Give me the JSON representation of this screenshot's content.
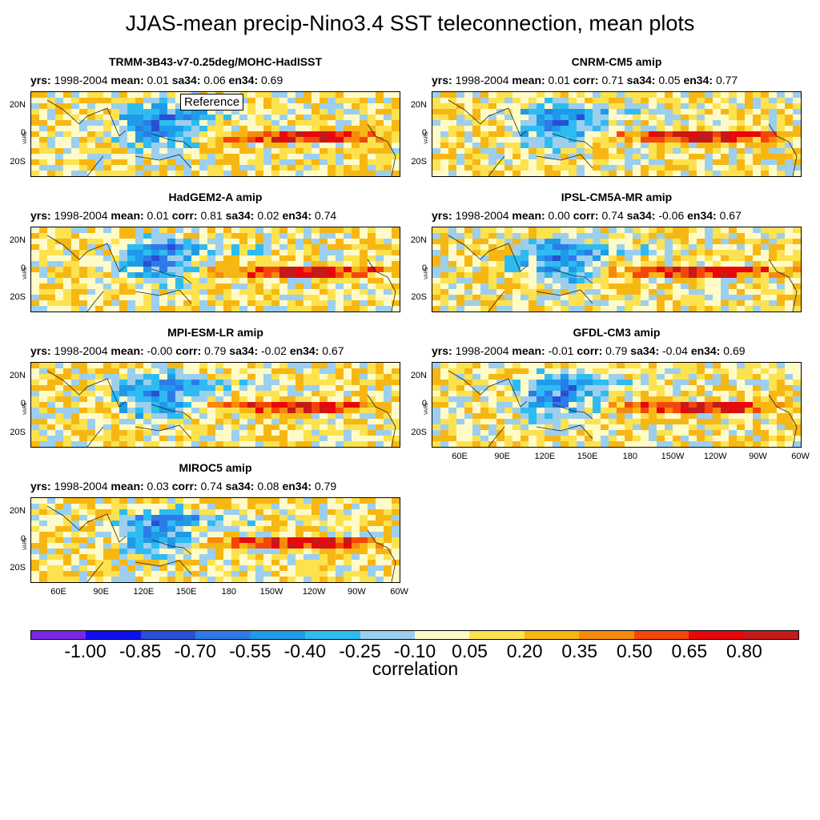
{
  "figure": {
    "title": "JJAS-mean precip-Nino3.4 SST teleconnection, mean plots",
    "reference_label": "Reference",
    "units_label": "VAR5",
    "lat_labels": [
      "20N",
      "0",
      "20S"
    ],
    "lon_labels": [
      "60E",
      "90E",
      "120E",
      "150E",
      "180",
      "150W",
      "120W",
      "90W",
      "60W"
    ]
  },
  "stat_keys": {
    "yrs": "yrs:",
    "mean": "mean:",
    "corr": "corr:",
    "sa34": "sa34:",
    "en34": "en34:"
  },
  "panels": [
    {
      "title": "TRMM-3B43-v7-0.25deg/MOHC-HadISST",
      "yrs": "1998-2004",
      "mean": "0.01",
      "corr": "",
      "sa34": "0.06",
      "en34": "0.69",
      "reference": true
    },
    {
      "title": "CNRM-CM5 amip",
      "yrs": "1998-2004",
      "mean": "0.01",
      "corr": "0.71",
      "sa34": "0.05",
      "en34": "0.77"
    },
    {
      "title": "HadGEM2-A amip",
      "yrs": "1998-2004",
      "mean": "0.01",
      "corr": "0.81",
      "sa34": "0.02",
      "en34": "0.74"
    },
    {
      "title": "IPSL-CM5A-MR amip",
      "yrs": "1998-2004",
      "mean": "0.00",
      "corr": "0.74",
      "sa34": "-0.06",
      "en34": "0.67"
    },
    {
      "title": "MPI-ESM-LR amip",
      "yrs": "1998-2004",
      "mean": "-0.00",
      "corr": "0.79",
      "sa34": "-0.02",
      "en34": "0.67"
    },
    {
      "title": "GFDL-CM3 amip",
      "yrs": "1998-2004",
      "mean": "-0.01",
      "corr": "0.79",
      "sa34": "-0.04",
      "en34": "0.69"
    },
    {
      "title": "MIROC5 amip",
      "yrs": "1998-2004",
      "mean": "0.03",
      "corr": "0.74",
      "sa34": "0.08",
      "en34": "0.79"
    }
  ],
  "colorbar": {
    "title": "correlation",
    "labels": [
      "-1.00",
      "-0.85",
      "-0.70",
      "-0.55",
      "-0.40",
      "-0.25",
      "-0.10",
      "0.05",
      "0.20",
      "0.35",
      "0.50",
      "0.65",
      "0.80"
    ],
    "colors": [
      "#7b26e6",
      "#1010ee",
      "#2a4fd6",
      "#2e7ae8",
      "#1f9ae8",
      "#2ebbf2",
      "#9ccfee",
      "#fffbc8",
      "#fde24f",
      "#f6b715",
      "#f58a0c",
      "#f5460a",
      "#e8070b",
      "#c41a1a"
    ]
  }
}
